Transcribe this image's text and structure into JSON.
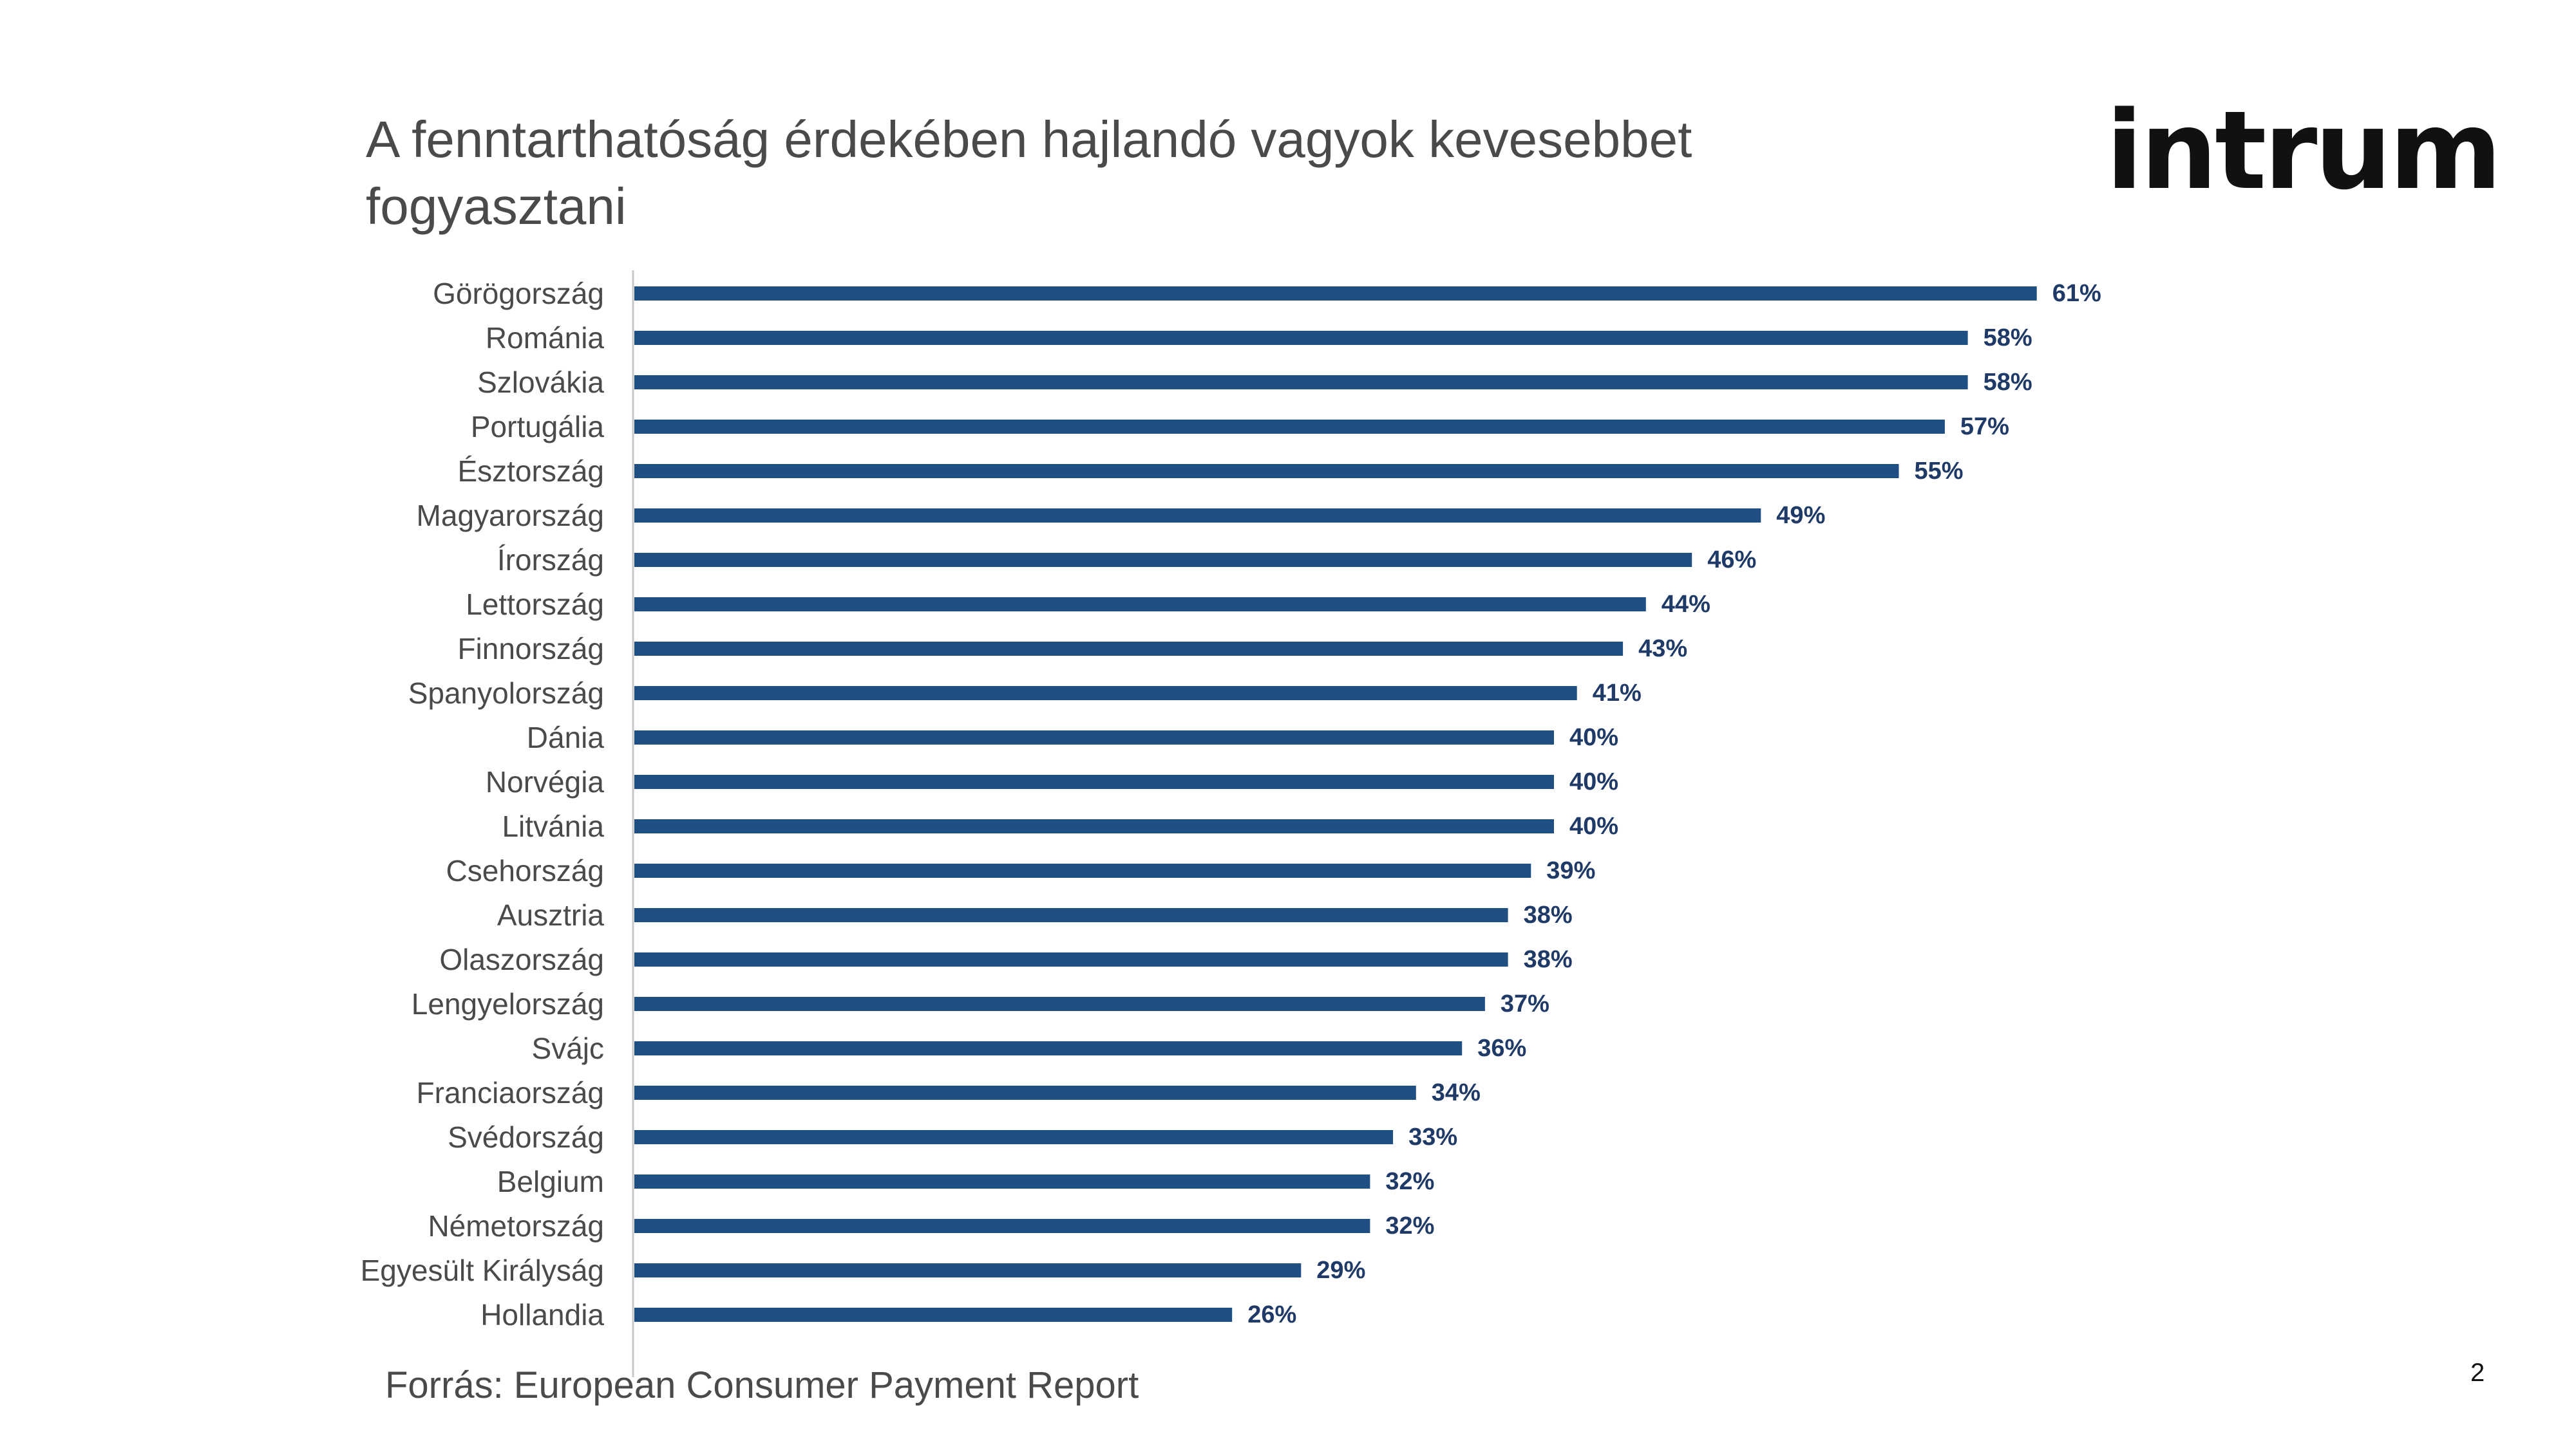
{
  "slide": {
    "title": "A fenntarthatóság érdekében hajlandó vagyok kevesebbet fogyasztani",
    "logo_text": "intrum",
    "source": "Forrás: European Consumer Payment Report",
    "page_number": "2"
  },
  "colors": {
    "bar": "#1f4e82",
    "label": "#1f3a66",
    "axis": "#c8c8c8",
    "category_text": "#4a4a4a"
  },
  "chart_data": {
    "type": "bar",
    "orientation": "horizontal",
    "categories": [
      "Görögország",
      "Románia",
      "Szlovákia",
      "Portugália",
      "Észtország",
      "Magyarország",
      "Írország",
      "Lettország",
      "Finnország",
      "Spanyolország",
      "Dánia",
      "Norvégia",
      "Litvánia",
      "Csehország",
      "Ausztria",
      "Olaszország",
      "Lengyelország",
      "Svájc",
      "Franciaország",
      "Svédország",
      "Belgium",
      "Németország",
      "Egyesült Királyság",
      "Hollandia"
    ],
    "values": [
      61,
      58,
      58,
      57,
      55,
      49,
      46,
      44,
      43,
      41,
      40,
      40,
      40,
      39,
      38,
      38,
      37,
      36,
      34,
      33,
      32,
      32,
      29,
      26
    ],
    "value_labels": [
      "61%",
      "58%",
      "58%",
      "57%",
      "55%",
      "49%",
      "46%",
      "44%",
      "43%",
      "41%",
      "40%",
      "40%",
      "40%",
      "39%",
      "38%",
      "38%",
      "37%",
      "36%",
      "34%",
      "33%",
      "32%",
      "32%",
      "29%",
      "26%"
    ],
    "unit": "%",
    "xlim": [
      0,
      100
    ],
    "grid": false,
    "legend": "none"
  }
}
